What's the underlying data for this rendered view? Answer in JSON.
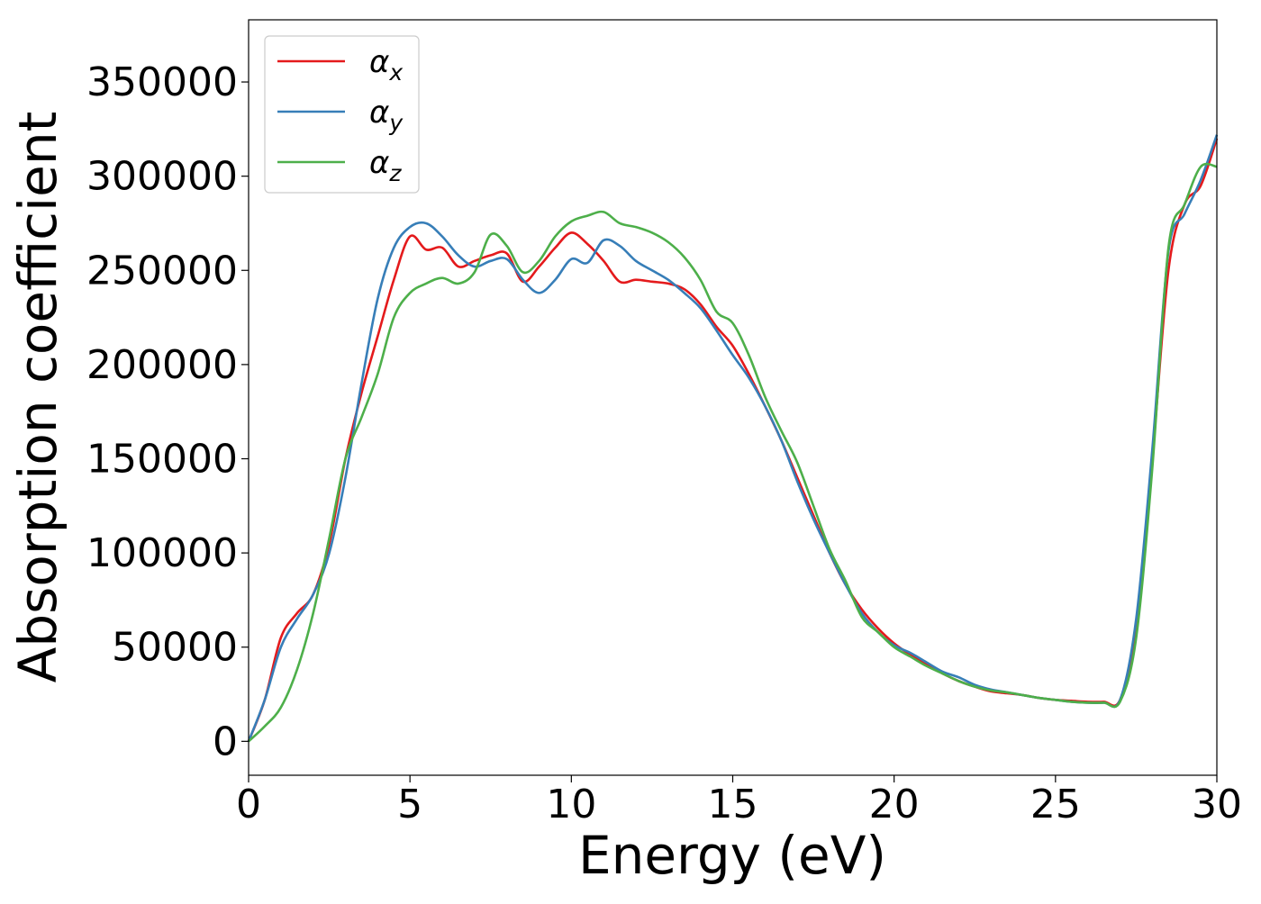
{
  "chart_data": {
    "type": "line",
    "title": "",
    "xlabel": "Energy (eV)",
    "ylabel": "Absorption coefficient",
    "xlim": [
      0,
      30
    ],
    "ylim": [
      -18000,
      383000
    ],
    "xticks": [
      0,
      5,
      10,
      15,
      20,
      25,
      30
    ],
    "yticks": [
      0,
      50000,
      100000,
      150000,
      200000,
      250000,
      300000,
      350000
    ],
    "grid": false,
    "legend_position": "top-left",
    "series": [
      {
        "name": "α_x",
        "name_base": "α",
        "name_sub": "x",
        "color": "#e41a1c",
        "x": [
          0,
          0.5,
          1,
          1.5,
          2,
          2.5,
          3,
          3.5,
          4,
          4.5,
          5,
          5.5,
          6,
          6.5,
          7,
          7.5,
          8,
          8.5,
          9,
          9.5,
          10,
          10.5,
          11,
          11.5,
          12,
          12.5,
          13,
          13.5,
          14,
          14.5,
          15,
          15.5,
          16,
          16.5,
          17,
          17.5,
          18,
          18.5,
          19,
          19.5,
          20,
          20.5,
          21,
          21.5,
          22,
          22.5,
          23,
          23.5,
          24,
          24.5,
          25,
          25.5,
          26,
          26.5,
          27,
          27.5,
          28,
          28.5,
          29,
          29.5,
          30
        ],
        "y": [
          0,
          22000,
          55000,
          68000,
          78000,
          105000,
          150000,
          185000,
          215000,
          245000,
          268000,
          261000,
          262000,
          252000,
          255000,
          258000,
          259000,
          244000,
          252000,
          262000,
          270000,
          264000,
          255000,
          244000,
          245000,
          244000,
          243000,
          240000,
          232000,
          220000,
          210000,
          195000,
          178000,
          160000,
          140000,
          120000,
          100000,
          83000,
          70000,
          60000,
          52000,
          46000,
          41000,
          36000,
          32000,
          29000,
          26500,
          25500,
          24500,
          23000,
          22000,
          21500,
          21000,
          21000,
          22000,
          60000,
          150000,
          250000,
          285000,
          295000,
          320000
        ]
      },
      {
        "name": "α_y",
        "name_base": "α",
        "name_sub": "y",
        "color": "#377eb8",
        "x": [
          0,
          0.5,
          1,
          1.5,
          2,
          2.5,
          3,
          3.5,
          4,
          4.5,
          5,
          5.5,
          6,
          6.5,
          7,
          7.5,
          8,
          8.5,
          9,
          9.5,
          10,
          10.5,
          11,
          11.5,
          12,
          12.5,
          13,
          13.5,
          14,
          14.5,
          15,
          15.5,
          16,
          16.5,
          17,
          17.5,
          18,
          18.5,
          19,
          19.5,
          20,
          20.5,
          21,
          21.5,
          22,
          22.5,
          23,
          23.5,
          24,
          24.5,
          25,
          25.5,
          26,
          26.5,
          27,
          27.5,
          28,
          28.5,
          29,
          29.5,
          30
        ],
        "y": [
          0,
          22000,
          50000,
          65000,
          78000,
          100000,
          140000,
          190000,
          235000,
          262000,
          273000,
          275000,
          268000,
          258000,
          252000,
          255000,
          256000,
          245000,
          238000,
          245000,
          256000,
          254000,
          266000,
          263000,
          255000,
          250000,
          245000,
          238000,
          230000,
          218000,
          205000,
          193000,
          178000,
          160000,
          138000,
          118000,
          100000,
          83000,
          68000,
          58000,
          51000,
          47000,
          42000,
          37000,
          34000,
          30000,
          27500,
          26000,
          24500,
          23000,
          22000,
          21000,
          20500,
          20500,
          22000,
          65000,
          155000,
          260000,
          280000,
          298000,
          322000
        ]
      },
      {
        "name": "α_z",
        "name_base": "α",
        "name_sub": "z",
        "color": "#4daf4a",
        "x": [
          0,
          0.5,
          1,
          1.5,
          2,
          2.5,
          3,
          3.5,
          4,
          4.5,
          5,
          5.5,
          6,
          6.5,
          7,
          7.5,
          8,
          8.5,
          9,
          9.5,
          10,
          10.5,
          11,
          11.5,
          12,
          12.5,
          13,
          13.5,
          14,
          14.5,
          15,
          15.5,
          16,
          16.5,
          17,
          17.5,
          18,
          18.5,
          19,
          19.5,
          20,
          20.5,
          21,
          21.5,
          22,
          22.5,
          23,
          23.5,
          24,
          24.5,
          25,
          25.5,
          26,
          26.5,
          27,
          27.5,
          28,
          28.5,
          29,
          29.5,
          30
        ],
        "y": [
          0,
          8000,
          18000,
          38000,
          68000,
          108000,
          150000,
          172000,
          195000,
          225000,
          238000,
          243000,
          246000,
          243000,
          249000,
          269000,
          263000,
          249000,
          255000,
          268000,
          276000,
          279000,
          281000,
          275000,
          273000,
          270000,
          265000,
          257000,
          245000,
          228000,
          222000,
          205000,
          183000,
          165000,
          148000,
          125000,
          102000,
          85000,
          66000,
          58000,
          50000,
          45000,
          40000,
          36000,
          32000,
          29000,
          27000,
          26000,
          24500,
          23000,
          22000,
          21000,
          20500,
          20500,
          21000,
          55000,
          145000,
          262000,
          285000,
          305000,
          305000
        ]
      }
    ]
  }
}
